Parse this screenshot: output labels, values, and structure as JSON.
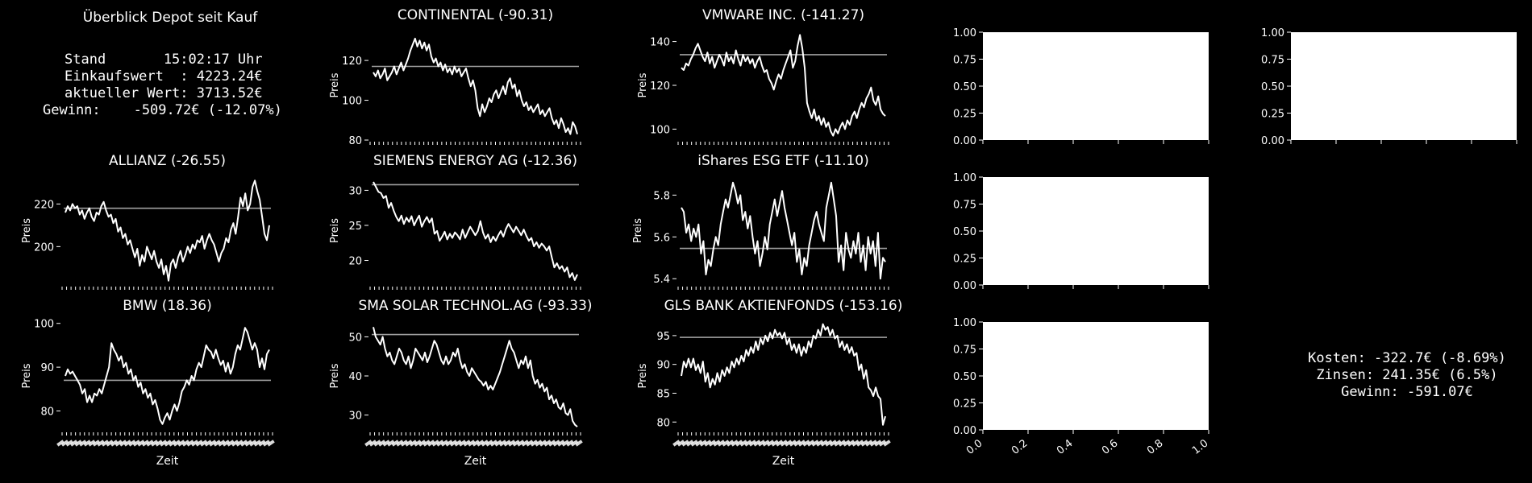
{
  "overview": {
    "title": "Überblick Depot seit Kauf",
    "lines": [
      "Stand       15:02:17 Uhr",
      "Einkaufswert  : 4223.24€",
      "aktueller Wert: 3713.52€",
      "Gewinn:    -509.72€ (-12.07%)"
    ]
  },
  "summary": {
    "lines": [
      "Kosten: -322.7€ (-8.69%)",
      "Zinsen: 241.35€ (6.5%)",
      "Gewinn: -591.07€"
    ]
  },
  "axis_labels": {
    "y": "Preis",
    "x": "Zeit"
  },
  "colors": {
    "background": "#000000",
    "line": "#ffffff",
    "reference": "#a0a0a0",
    "empty_panel": "#ffffff"
  },
  "chart_data": [
    {
      "type": "line",
      "title": "CONTINENTAL (-90.31)",
      "ylabel": "Preis",
      "xlabel": "",
      "ylim": [
        80,
        135
      ],
      "yticks": [
        80,
        100,
        120
      ],
      "reference_value": 117,
      "values": [
        114,
        112,
        115,
        111,
        113,
        116,
        110,
        112,
        114,
        117,
        113,
        116,
        119,
        115,
        118,
        121,
        125,
        128,
        131,
        127,
        130,
        126,
        129,
        125,
        128,
        122,
        119,
        121,
        117,
        119,
        115,
        118,
        114,
        116,
        113,
        117,
        114,
        116,
        112,
        114,
        116,
        111,
        107,
        110,
        105,
        96,
        92,
        98,
        94,
        97,
        101,
        99,
        103,
        105,
        101,
        104,
        107,
        103,
        109,
        111,
        106,
        108,
        102,
        105,
        100,
        97,
        99,
        95,
        97,
        94,
        96,
        98,
        93,
        95,
        92,
        94,
        96,
        91,
        88,
        90,
        86,
        91,
        88,
        84,
        86,
        83,
        89,
        87,
        83
      ],
      "color": "#ffffff"
    },
    {
      "type": "line",
      "title": "VMWARE INC. (-141.27)",
      "ylabel": "Preis",
      "xlabel": "",
      "ylim": [
        95,
        145
      ],
      "yticks": [
        100,
        120,
        140
      ],
      "reference_value": 134,
      "values": [
        128,
        127,
        130,
        129,
        132,
        134,
        137,
        139,
        136,
        133,
        131,
        135,
        130,
        133,
        128,
        131,
        134,
        132,
        129,
        135,
        131,
        133,
        130,
        136,
        132,
        129,
        134,
        131,
        133,
        130,
        132,
        128,
        131,
        133,
        129,
        126,
        127,
        123,
        121,
        118,
        122,
        125,
        123,
        127,
        130,
        133,
        136,
        128,
        131,
        138,
        143,
        137,
        128,
        112,
        108,
        105,
        109,
        104,
        106,
        102,
        105,
        101,
        103,
        99,
        97,
        100,
        98,
        101,
        103,
        100,
        104,
        102,
        106,
        108,
        105,
        109,
        112,
        110,
        114,
        116,
        119,
        113,
        111,
        115,
        109,
        107,
        106
      ],
      "color": "#ffffff"
    },
    {
      "type": "line",
      "title": "ALLIANZ (-26.55)",
      "ylabel": "Preis",
      "xlabel": "",
      "ylim": [
        182,
        233
      ],
      "yticks": [
        200,
        220
      ],
      "reference_value": 218,
      "values": [
        216,
        219,
        217,
        220,
        218,
        219,
        215,
        217,
        213,
        216,
        218,
        214,
        212,
        216,
        215,
        219,
        221,
        217,
        214,
        215,
        211,
        213,
        207,
        209,
        204,
        206,
        201,
        203,
        199,
        195,
        199,
        191,
        196,
        193,
        200,
        197,
        194,
        198,
        193,
        190,
        194,
        187,
        191,
        184,
        192,
        194,
        190,
        195,
        198,
        193,
        196,
        200,
        197,
        201,
        199,
        203,
        202,
        205,
        199,
        203,
        206,
        203,
        201,
        197,
        193,
        197,
        199,
        204,
        202,
        208,
        211,
        206,
        214,
        223,
        219,
        225,
        217,
        220,
        228,
        231,
        226,
        222,
        214,
        206,
        203,
        210
      ],
      "color": "#ffffff"
    },
    {
      "type": "line",
      "title": "SIEMENS ENERGY AG (-12.36)",
      "ylabel": "Preis",
      "xlabel": "",
      "ylim": [
        16.5,
        32
      ],
      "yticks": [
        20,
        25,
        30
      ],
      "reference_value": 30.8,
      "values": [
        31.2,
        30.5,
        29.8,
        29.6,
        28.9,
        29.2,
        27.5,
        28.2,
        27.1,
        26.2,
        25.6,
        26.4,
        25.2,
        26.1,
        25.5,
        26.3,
        25.0,
        25.8,
        26.4,
        24.8,
        25.6,
        26.2,
        25.4,
        26.0,
        23.8,
        24.2,
        22.8,
        23.4,
        24.1,
        23.0,
        23.8,
        23.2,
        24.0,
        23.6,
        23.0,
        24.4,
        23.2,
        24.0,
        24.8,
        24.2,
        23.6,
        24.2,
        25.6,
        24.0,
        23.1,
        23.7,
        22.6,
        23.4,
        22.8,
        23.6,
        24.2,
        23.4,
        24.5,
        25.2,
        24.6,
        24.0,
        24.8,
        24.2,
        23.6,
        24.4,
        23.5,
        22.8,
        23.2,
        22.0,
        22.6,
        21.8,
        22.4,
        22.0,
        21.4,
        22.0,
        20.4,
        19.0,
        19.6,
        18.8,
        19.2,
        18.4,
        19.0,
        17.6,
        18.2,
        17.2,
        18.0
      ],
      "color": "#ffffff"
    },
    {
      "type": "line",
      "title": "iShares ESG ETF (-11.10)",
      "ylabel": "Preis",
      "xlabel": "",
      "ylim": [
        5.37,
        5.89
      ],
      "yticks": [
        5.4,
        5.6,
        5.8
      ],
      "reference_value": 5.545,
      "values": [
        5.74,
        5.72,
        5.62,
        5.66,
        5.58,
        5.64,
        5.6,
        5.66,
        5.52,
        5.58,
        5.42,
        5.49,
        5.46,
        5.54,
        5.6,
        5.56,
        5.66,
        5.72,
        5.78,
        5.74,
        5.8,
        5.86,
        5.82,
        5.76,
        5.8,
        5.68,
        5.72,
        5.64,
        5.7,
        5.6,
        5.52,
        5.58,
        5.46,
        5.52,
        5.6,
        5.54,
        5.66,
        5.72,
        5.78,
        5.7,
        5.76,
        5.82,
        5.74,
        5.68,
        5.62,
        5.56,
        5.62,
        5.48,
        5.54,
        5.42,
        5.5,
        5.46,
        5.56,
        5.62,
        5.68,
        5.72,
        5.66,
        5.62,
        5.58,
        5.74,
        5.8,
        5.86,
        5.78,
        5.7,
        5.48,
        5.56,
        5.44,
        5.62,
        5.54,
        5.5,
        5.58,
        5.52,
        5.62,
        5.48,
        5.56,
        5.44,
        5.6,
        5.52,
        5.58,
        5.46,
        5.62,
        5.4,
        5.5,
        5.48
      ],
      "color": "#ffffff"
    },
    {
      "type": "line",
      "title": "BMW (18.36)",
      "ylabel": "Preis",
      "xlabel": "Zeit",
      "ylim": [
        75.5,
        100.5
      ],
      "yticks": [
        80,
        90,
        100
      ],
      "reference_value": 87,
      "values": [
        88,
        89.5,
        88.5,
        89,
        88,
        87,
        86,
        84,
        85,
        82,
        83.5,
        82,
        84,
        83.5,
        85,
        84,
        86,
        88,
        90,
        95.5,
        94,
        93,
        91.5,
        92.5,
        90,
        91,
        88.5,
        89.5,
        87,
        88,
        85.5,
        86.5,
        84,
        85,
        83,
        84,
        81.5,
        82.5,
        80.5,
        78,
        77,
        78.5,
        79.5,
        78,
        80,
        81.5,
        80,
        82,
        84.5,
        85.5,
        87,
        86,
        88,
        87,
        89.5,
        91,
        90,
        92.5,
        95,
        94,
        93.5,
        92,
        94,
        92,
        90.5,
        91.5,
        89,
        91,
        88.5,
        90,
        93,
        95,
        94,
        96.5,
        99,
        98,
        96,
        94,
        95.5,
        94,
        90,
        92,
        89.5,
        93,
        94
      ],
      "color": "#ffffff"
    },
    {
      "type": "line",
      "title": "SMA SOLAR TECHNOL.AG (-93.33)",
      "ylabel": "Preis",
      "xlabel": "Zeit",
      "ylim": [
        26,
        54
      ],
      "yticks": [
        30,
        40,
        50
      ],
      "reference_value": 50.6,
      "values": [
        52.5,
        50,
        49,
        48,
        50,
        47,
        45,
        46,
        44,
        43,
        45,
        47,
        46,
        44,
        43,
        45,
        42,
        44,
        47,
        46,
        45,
        44,
        46,
        43.5,
        45,
        47,
        49,
        48,
        46,
        44,
        43,
        45,
        43,
        44,
        46,
        45,
        47,
        44,
        42,
        43,
        41,
        40,
        42,
        41,
        40,
        39,
        38.5,
        37.5,
        38.5,
        36.5,
        37.5,
        36.5,
        38,
        39.5,
        41,
        43,
        45,
        47,
        49,
        47,
        46,
        44,
        42,
        44,
        43,
        45,
        42,
        44,
        40,
        38,
        39,
        37,
        38,
        36,
        37,
        34,
        35,
        33,
        34,
        32,
        31.5,
        33,
        30.5,
        30,
        31.5,
        28.5,
        27.5,
        27
      ],
      "color": "#ffffff"
    },
    {
      "type": "line",
      "title": "GLS BANK AKTIENFONDS (-153.16)",
      "ylabel": "Preis",
      "xlabel": "Zeit",
      "ylim": [
        78.5,
        97.5
      ],
      "yticks": [
        80,
        85,
        90,
        95
      ],
      "reference_value": 94.7,
      "values": [
        88,
        90.5,
        89.5,
        91,
        89.5,
        91,
        89,
        90,
        88.5,
        90.5,
        87,
        88.5,
        86,
        87.5,
        86.5,
        88.5,
        87,
        89,
        88,
        89.5,
        88.5,
        90.5,
        89.5,
        91,
        90,
        91.5,
        90.5,
        92.5,
        91.5,
        93,
        92,
        94,
        92.5,
        94.5,
        93.5,
        95,
        94,
        95.5,
        94.5,
        96,
        95,
        95.5,
        94.5,
        95.5,
        93.5,
        94.5,
        92.5,
        93.5,
        92,
        93.5,
        91.5,
        93,
        92,
        94,
        93,
        95,
        94.5,
        96,
        95,
        97,
        96,
        96.5,
        95,
        96,
        94.5,
        95,
        93,
        94,
        92.5,
        93.5,
        92,
        93,
        91.5,
        92,
        89,
        90,
        87.5,
        89,
        86,
        85.5,
        84.5,
        86,
        84.5,
        84,
        79.5,
        81
      ],
      "color": "#ffffff"
    },
    {
      "type": "line",
      "title": "",
      "xlim": [
        0,
        1
      ],
      "ylim": [
        0,
        1
      ],
      "xticks": [],
      "yticks": [
        "0.00",
        "0.25",
        "0.50",
        "0.75",
        "1.00"
      ],
      "values": []
    },
    {
      "type": "line",
      "title": "",
      "xlim": [
        0,
        1
      ],
      "ylim": [
        0,
        1
      ],
      "xticks": [],
      "yticks": [
        "0.00",
        "0.25",
        "0.50",
        "0.75",
        "1.00"
      ],
      "values": []
    },
    {
      "type": "line",
      "title": "",
      "xlim": [
        0,
        1
      ],
      "ylim": [
        0,
        1
      ],
      "xticks": [],
      "yticks": [
        "0.00",
        "0.25",
        "0.50",
        "0.75",
        "1.00"
      ],
      "values": []
    },
    {
      "type": "line",
      "title": "",
      "xlim": [
        0,
        1
      ],
      "ylim": [
        0,
        1
      ],
      "xticks": [
        "0.0",
        "0.2",
        "0.4",
        "0.6",
        "0.8",
        "1.0"
      ],
      "yticks": [
        "0.00",
        "0.25",
        "0.50",
        "0.75",
        "1.00"
      ],
      "values": []
    }
  ]
}
